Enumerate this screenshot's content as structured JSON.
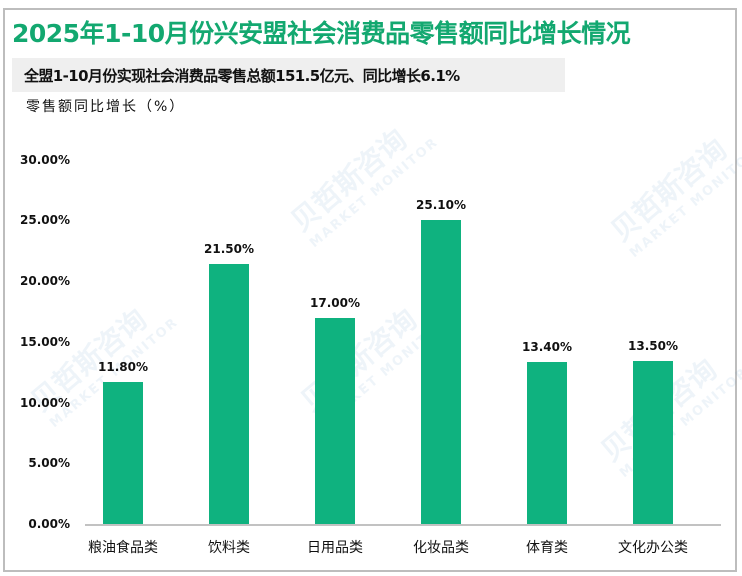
{
  "title": "2025年1-10月份兴安盟社会消费品零售额同比增长情况",
  "subtitle": "全盟1-10月份实现社会消费品零售总额151.5亿元、同比增长6.1%",
  "y_axis_label": "零售额同比增长（%）",
  "watermark": {
    "cn": "贝哲斯咨询",
    "en": "MARKET MONITOR"
  },
  "colors": {
    "title": "#13a870",
    "bar": "#0fb27f",
    "subtitle_band": "#efefef",
    "axis": "#c2c2c2"
  },
  "y_ticks": [
    "0.00%",
    "5.00%",
    "10.00%",
    "15.00%",
    "20.00%",
    "25.00%",
    "30.00%"
  ],
  "chart_data": {
    "type": "bar",
    "title": "2025年1-10月份兴安盟社会消费品零售额同比增长情况",
    "subtitle": "全盟1-10月份实现社会消费品零售总额151.5亿元、同比增长6.1%",
    "xlabel": "",
    "ylabel": "零售额同比增长（%）",
    "categories": [
      "粮油食品类",
      "饮料类",
      "日用品类",
      "化妆品类",
      "体育类",
      "文化办公类"
    ],
    "values": [
      11.8,
      21.5,
      17.0,
      25.1,
      13.4,
      13.5
    ],
    "value_labels": [
      "11.80%",
      "21.50%",
      "17.00%",
      "25.10%",
      "13.40%",
      "13.50%"
    ],
    "ylim": [
      0,
      30
    ],
    "yticks": [
      0,
      5,
      10,
      15,
      20,
      25,
      30
    ],
    "grid": false,
    "legend": "none"
  }
}
